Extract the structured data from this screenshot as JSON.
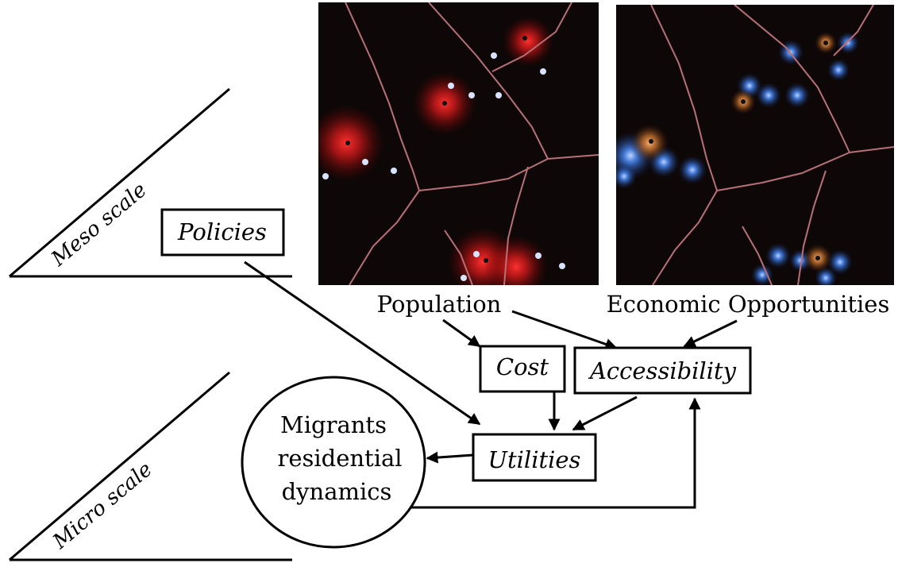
{
  "scales": {
    "meso": "Meso scale",
    "micro": "Micro scale"
  },
  "maps": {
    "left_label": "Population",
    "right_label": "Economic Opportunities"
  },
  "nodes": {
    "policies": "Policies",
    "cost": "Cost",
    "accessibility": "Accessibility",
    "utilities": "Utilities",
    "migrants": [
      "Migrants",
      "residential",
      "dynamics"
    ]
  },
  "colors": {
    "map_background": "#0e0707",
    "region_border": "#b76f78",
    "population_glow": "#ff2a2a",
    "opportunity_glow": "#3d86ff",
    "opportunity_center": "#d8894a"
  }
}
